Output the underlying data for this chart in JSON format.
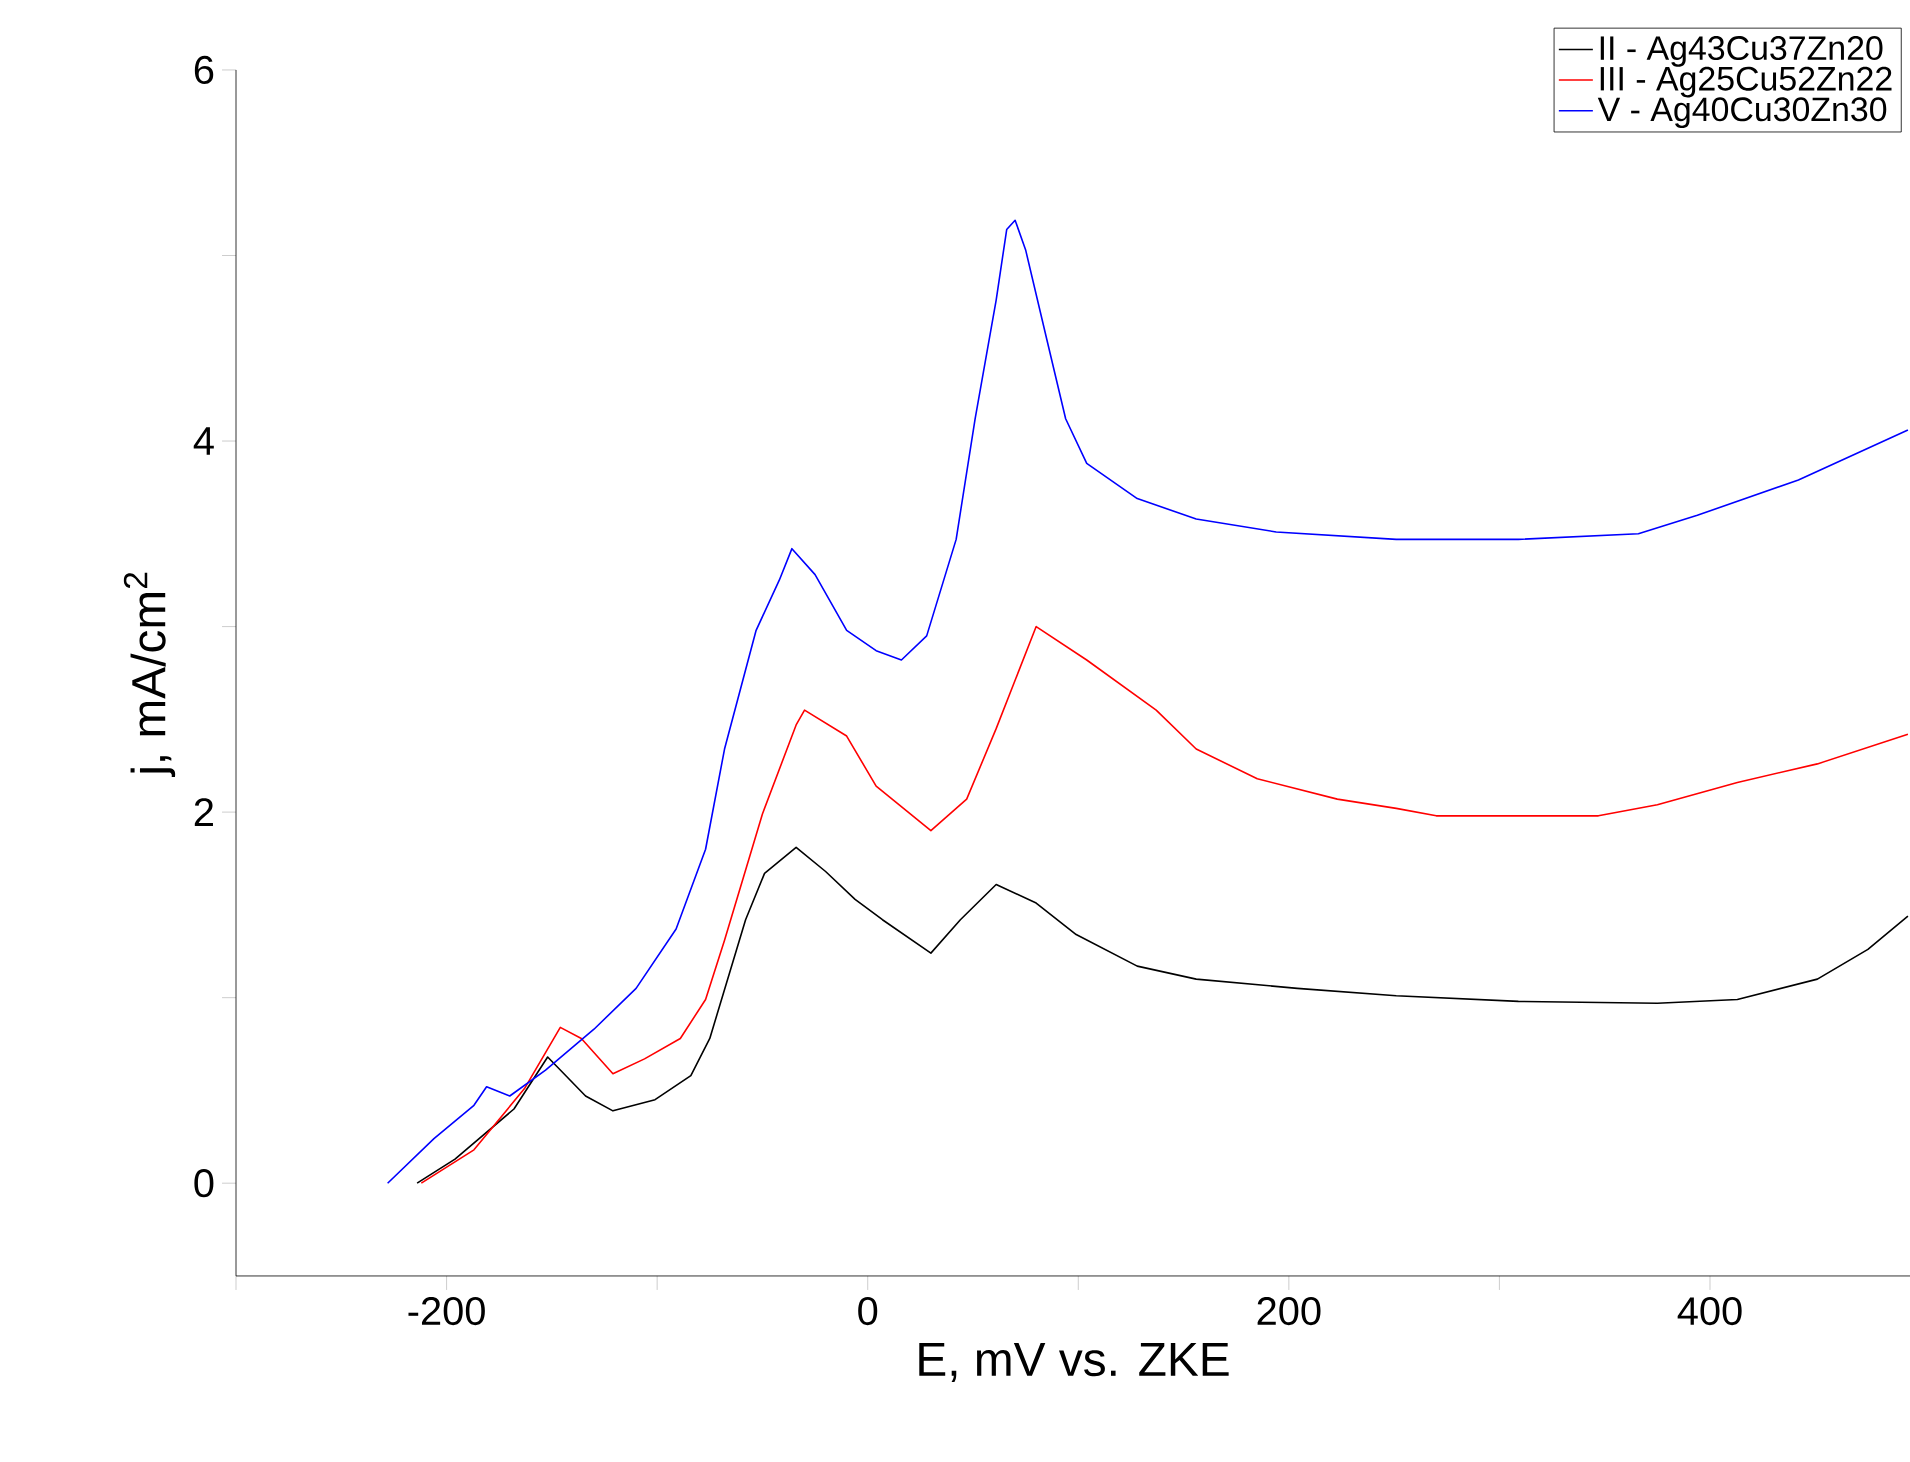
{
  "chart_data": {
    "type": "line",
    "xlabel": "E, mV vs. ZKE",
    "ylabel": "j, mA/cm$^{2}$",
    "xlim": [
      -300,
      495
    ],
    "ylim": [
      -0.5,
      6
    ],
    "xticks": [
      {
        "value": -300,
        "label": null
      },
      -200,
      {
        "value": -100,
        "label": null
      },
      0,
      {
        "value": 100,
        "label": null
      },
      200,
      {
        "value": 300,
        "label": null
      },
      400
    ],
    "yticks": [
      0,
      {
        "value": 1,
        "label": null
      },
      2,
      {
        "value": 3,
        "label": null
      },
      4,
      {
        "value": 5,
        "label": null
      },
      6
    ],
    "legend": "top right",
    "grid": false,
    "marker": "none",
    "line_style": "solid",
    "series": [
      {
        "name": "II  - Ag43Cu37Zn20",
        "color": "#000000",
        "x": [
          -214,
          -196,
          -168,
          -152,
          -134,
          -121,
          -101,
          -84,
          -75,
          -58,
          -49,
          -34,
          -20,
          -6,
          7,
          30,
          44,
          61,
          80,
          99,
          128,
          156,
          204,
          251,
          309,
          375,
          413,
          451,
          475,
          494
        ],
        "values": [
          0,
          0.13,
          0.4,
          0.68,
          0.47,
          0.39,
          0.45,
          0.58,
          0.78,
          1.42,
          1.67,
          1.81,
          1.68,
          1.53,
          1.42,
          1.24,
          1.42,
          1.61,
          1.51,
          1.34,
          1.17,
          1.1,
          1.05,
          1.01,
          0.98,
          0.97,
          0.99,
          1.1,
          1.26,
          1.44
        ]
      },
      {
        "name": "III - Ag25Cu52Zn22",
        "color": "#ff0000",
        "x": [
          -212,
          -187,
          -163,
          -146,
          -136,
          -121,
          -106,
          -89,
          -77,
          -68,
          -50,
          -34,
          -30,
          -10,
          4,
          30,
          47,
          61,
          80,
          104,
          137,
          156,
          185,
          223,
          251,
          270,
          347,
          375,
          413,
          451,
          494
        ],
        "values": [
          0,
          0.18,
          0.51,
          0.84,
          0.78,
          0.59,
          0.67,
          0.78,
          0.99,
          1.31,
          1.99,
          2.47,
          2.55,
          2.41,
          2.14,
          1.9,
          2.07,
          2.45,
          3.0,
          2.82,
          2.55,
          2.34,
          2.18,
          2.07,
          2.02,
          1.98,
          1.98,
          2.04,
          2.16,
          2.26,
          2.42
        ]
      },
      {
        "name": "V  -  Ag40Cu30Zn30",
        "color": "#0000ff",
        "x": [
          -228,
          -206,
          -187,
          -181,
          -170,
          -153,
          -130,
          -110,
          -91,
          -77,
          -68,
          -53,
          -42,
          -36,
          -25,
          -10,
          4,
          16,
          28,
          42,
          51,
          61,
          66,
          70,
          75,
          85,
          94,
          104,
          128,
          156,
          194,
          251,
          309,
          366,
          394,
          442,
          494
        ],
        "values": [
          0,
          0.24,
          0.42,
          0.52,
          0.47,
          0.61,
          0.83,
          1.05,
          1.37,
          1.8,
          2.34,
          2.98,
          3.25,
          3.42,
          3.28,
          2.98,
          2.87,
          2.82,
          2.95,
          3.47,
          4.12,
          4.76,
          5.14,
          5.19,
          5.03,
          4.55,
          4.12,
          3.88,
          3.69,
          3.58,
          3.51,
          3.47,
          3.47,
          3.5,
          3.6,
          3.79,
          4.06
        ]
      }
    ]
  }
}
